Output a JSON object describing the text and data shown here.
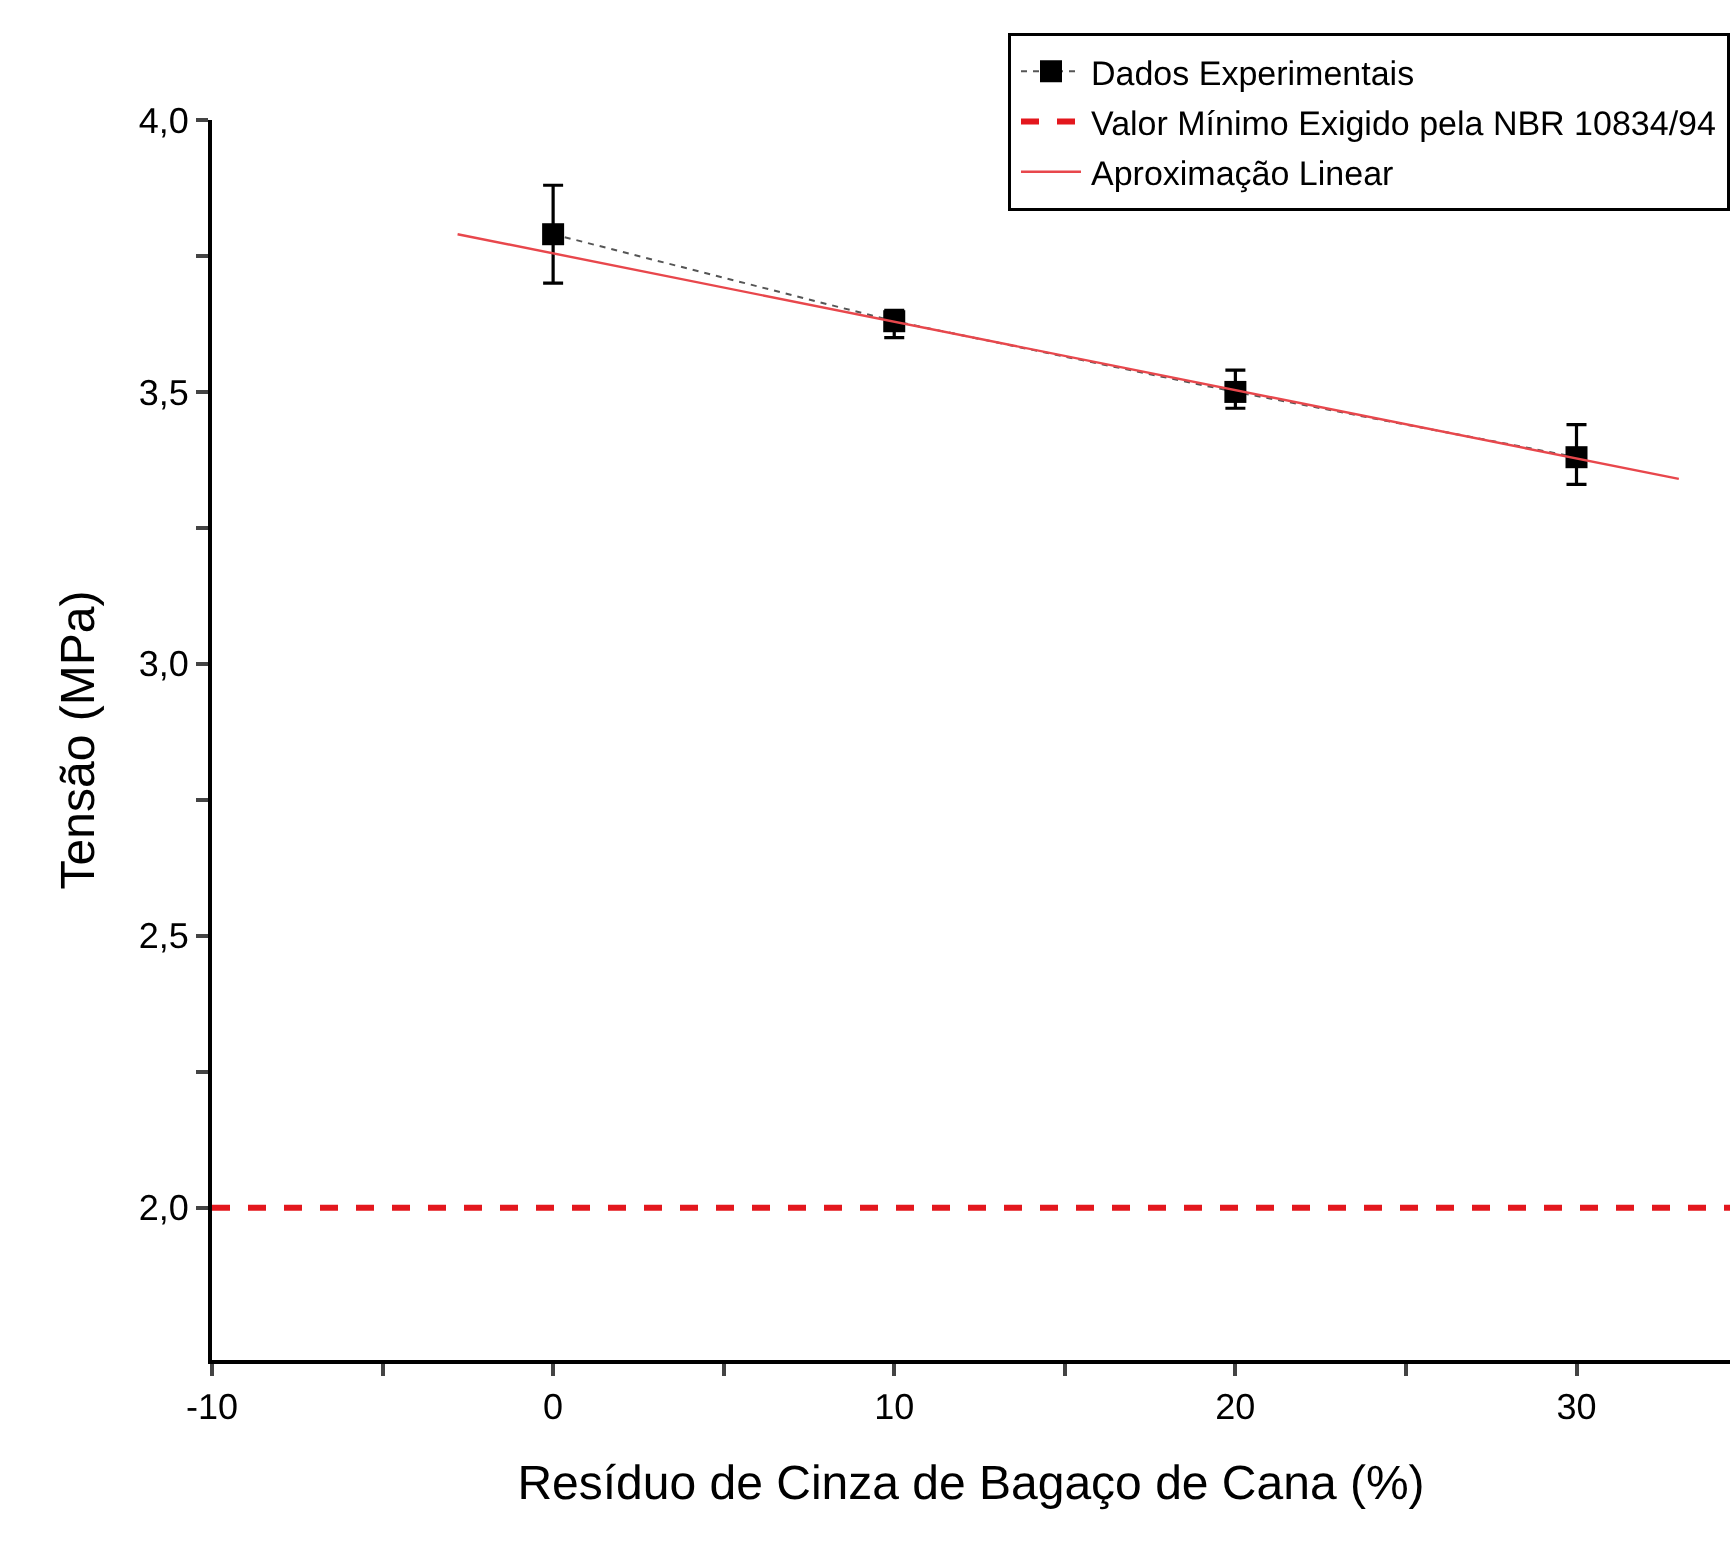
{
  "chart_data": {
    "type": "line",
    "xlabel": "Resíduo de Cinza de Bagaço de Cana (%)",
    "ylabel": "Tensão (MPa)",
    "x": [
      0,
      10,
      20,
      30
    ],
    "series": [
      {
        "name": "Dados Experimentais",
        "color": "#000000",
        "marker": "square",
        "line_style": "dotted",
        "values": [
          3.79,
          3.63,
          3.5,
          3.38
        ],
        "errors": [
          [
            3.7,
            3.88
          ],
          [
            3.6,
            3.65
          ],
          [
            3.47,
            3.54
          ],
          [
            3.33,
            3.44
          ]
        ]
      },
      {
        "name": "Aproximação Linear",
        "color": "#e8474c",
        "marker": "none",
        "line_style": "solid",
        "x": [
          -2.8,
          33
        ],
        "values": [
          3.79,
          3.34
        ]
      }
    ],
    "ref_lines": [
      {
        "axis": "y",
        "value": 2.0,
        "label": "Valor Mínimo Exigido pela NBR 10834/94",
        "color": "#e3171d",
        "line_style": "dashed"
      }
    ],
    "xlim": [
      -10,
      34.5
    ],
    "ylim": [
      1.72,
      4.0
    ],
    "xticks": [
      -10,
      {
        "value": -5,
        "label": null
      },
      0,
      {
        "value": 5,
        "label": null
      },
      10,
      {
        "value": 15,
        "label": null
      },
      20,
      {
        "value": 25,
        "label": null
      },
      30
    ],
    "yticks": [
      {
        "value": 2.0,
        "label": "2,0"
      },
      {
        "value": 2.25,
        "label": null
      },
      {
        "value": 2.5,
        "label": "2,5"
      },
      {
        "value": 2.75,
        "label": null
      },
      {
        "value": 3.0,
        "label": "3,0"
      },
      {
        "value": 3.25,
        "label": null
      },
      {
        "value": 3.5,
        "label": "3,5"
      },
      {
        "value": 3.75,
        "label": null
      },
      {
        "value": 4.0,
        "label": "4,0"
      }
    ],
    "grid": false,
    "legend": "top right"
  }
}
